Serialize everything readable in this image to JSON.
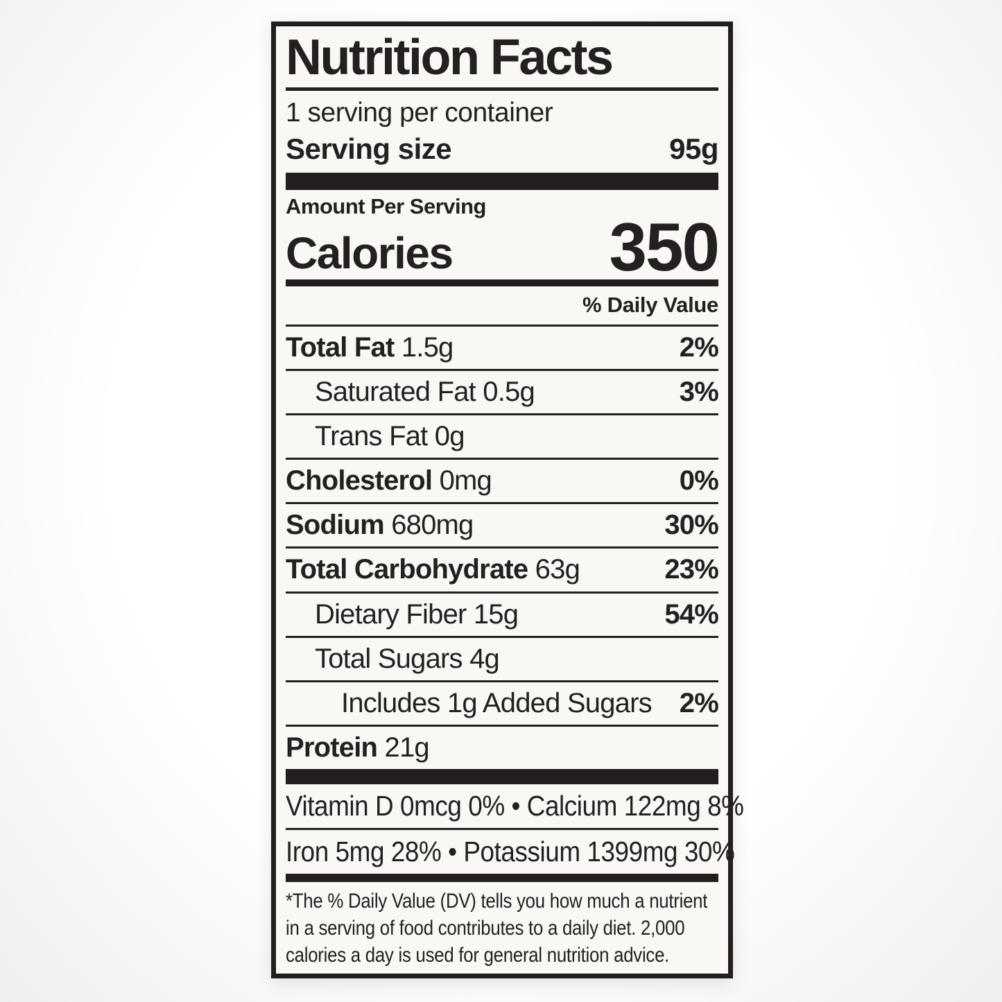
{
  "colors": {
    "ink": "#242021",
    "label_background": "#f9f8f5",
    "page_background": "#fdfdfd",
    "divider": "#231f20"
  },
  "label": {
    "title": "Nutrition Facts",
    "servings_per_container": "1 serving per container",
    "serving_size": {
      "label": "Serving size",
      "value": "95g"
    },
    "amount_per_serving": "Amount Per Serving",
    "calories": {
      "label": "Calories",
      "value": "350"
    },
    "daily_value_header": "% Daily Value",
    "nutrients": [
      {
        "name": "Total Fat",
        "amount": "1.5g",
        "dv": "2%",
        "bold": true,
        "indent": 0
      },
      {
        "name": "Saturated Fat",
        "amount": "0.5g",
        "dv": "3%",
        "bold": false,
        "indent": 1
      },
      {
        "name": "Trans Fat",
        "amount": "0g",
        "dv": "",
        "bold": false,
        "indent": 1
      },
      {
        "name": "Cholesterol",
        "amount": "0mg",
        "dv": "0%",
        "bold": true,
        "indent": 0
      },
      {
        "name": "Sodium",
        "amount": "680mg",
        "dv": "30%",
        "bold": true,
        "indent": 0
      },
      {
        "name": "Total Carbohydrate",
        "amount": "63g",
        "dv": "23%",
        "bold": true,
        "indent": 0
      },
      {
        "name": "Dietary Fiber",
        "amount": "15g",
        "dv": "54%",
        "bold": false,
        "indent": 1
      },
      {
        "name": "Total Sugars",
        "amount": "4g",
        "dv": "",
        "bold": false,
        "indent": 1
      },
      {
        "name": "Includes 1g Added Sugars",
        "amount": "",
        "dv": "2%",
        "bold": false,
        "indent": 2
      },
      {
        "name": "Protein",
        "amount": "21g",
        "dv": "",
        "bold": true,
        "indent": 0
      }
    ],
    "micronutrients": [
      "Vitamin D 0mcg 0% • Calcium 122mg 8%",
      "Iron 5mg 28% • Potassium 1399mg 30%"
    ],
    "footnote": "*The % Daily Value (DV) tells you how much a nutrient in a serving of food contributes to a daily diet. 2,000 calories a day is used for general nutrition advice."
  }
}
